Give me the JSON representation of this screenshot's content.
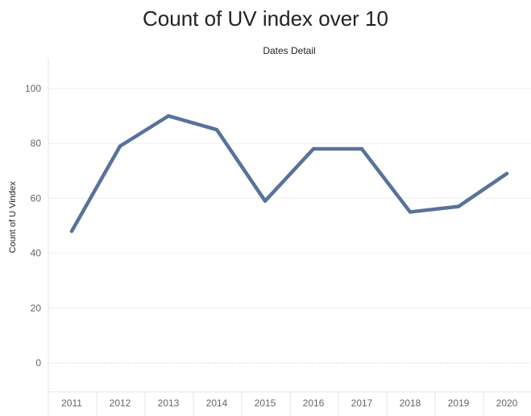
{
  "chart_data": {
    "type": "line",
    "title": "Count of UV index over 10",
    "subtitle": "Dates Detail",
    "xlabel": "",
    "ylabel": "Count of U Vindex",
    "categories": [
      "2011",
      "2012",
      "2013",
      "2014",
      "2015",
      "2016",
      "2017",
      "2018",
      "2019",
      "2020"
    ],
    "series": [
      {
        "name": "Count of U Vindex",
        "values": [
          48,
          79,
          90,
          85,
          59,
          78,
          78,
          55,
          57,
          69
        ]
      }
    ],
    "yticks": [
      0,
      20,
      40,
      60,
      80,
      100
    ],
    "ylim": [
      -12,
      112
    ],
    "line_color": "#58739a",
    "grid": true
  }
}
